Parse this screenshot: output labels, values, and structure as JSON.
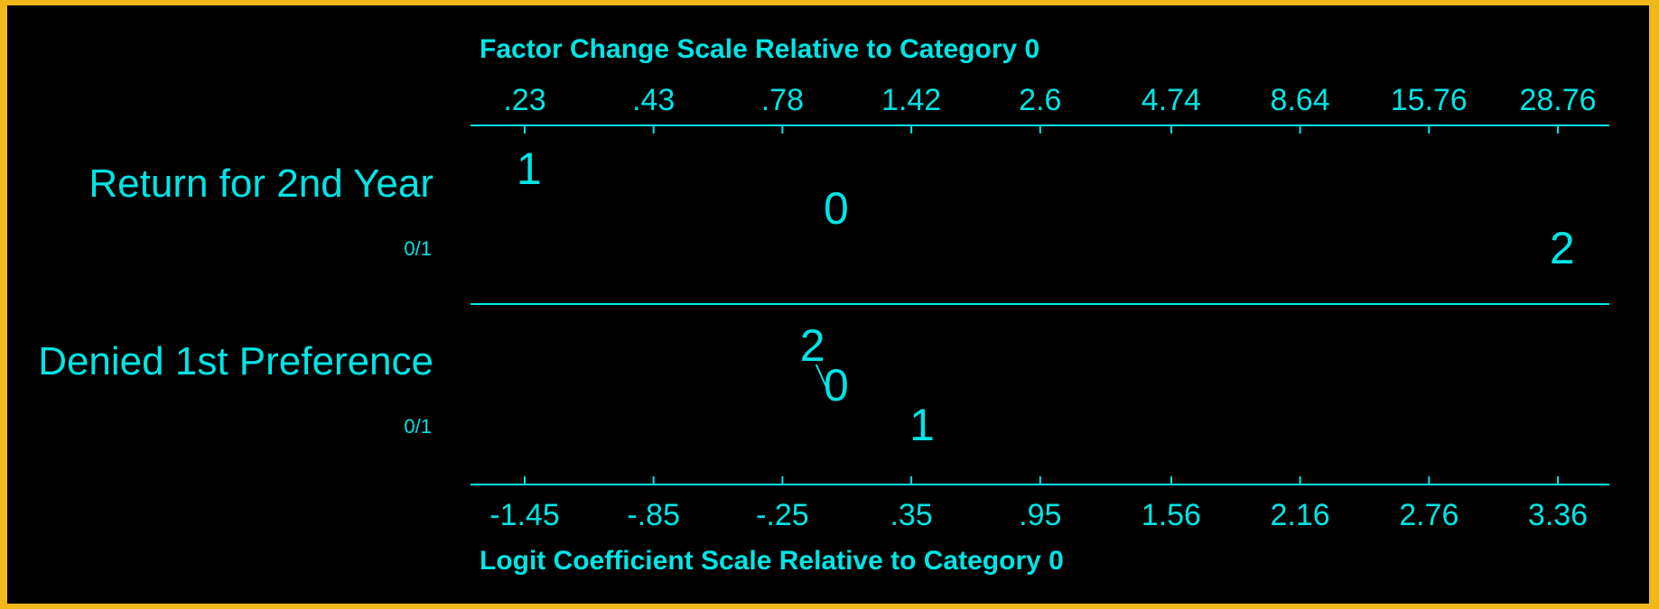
{
  "chart_data": {
    "type": "scatter",
    "colors": {
      "background": "#000000",
      "frame": "#f0b81a",
      "foreground": "#00e5e5"
    },
    "top_axis": {
      "title": "Factor Change Scale Relative to Category 0",
      "ticks": [
        ".23",
        ".43",
        ".78",
        "1.42",
        "2.6",
        "4.74",
        "8.64",
        "15.76",
        "28.76"
      ]
    },
    "bottom_axis": {
      "title": "Logit Coefficient Scale Relative to Category 0",
      "ticks": [
        "-1.45",
        "-.85",
        "-.25",
        ".35",
        ".95",
        "1.56",
        "2.16",
        "2.76",
        "3.36"
      ],
      "tick_values": [
        -1.45,
        -0.85,
        -0.25,
        0.35,
        0.95,
        1.56,
        2.16,
        2.76,
        3.36
      ],
      "xlim": [
        -1.45,
        3.36
      ]
    },
    "variables": [
      {
        "label": "Return for 2nd Year",
        "sublabel": "0/1",
        "points": [
          {
            "category": "1",
            "logit": -1.43
          },
          {
            "category": "0",
            "logit": 0.0
          },
          {
            "category": "2",
            "logit": 3.38
          }
        ]
      },
      {
        "label": "Denied 1st Preference",
        "sublabel": "0/1",
        "points": [
          {
            "category": "2",
            "logit": -0.11
          },
          {
            "category": "0",
            "logit": 0.0
          },
          {
            "category": "1",
            "logit": 0.4
          }
        ]
      }
    ],
    "grid": false
  }
}
